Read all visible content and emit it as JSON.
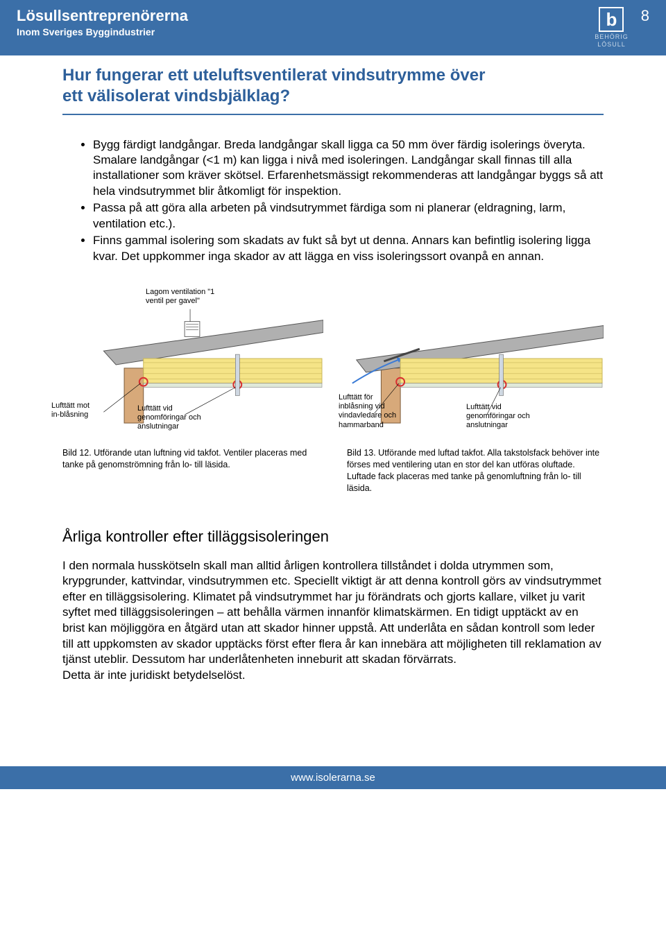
{
  "header": {
    "title": "Lösullsentreprenörerna",
    "subtitle": "Inom Sveriges Byggindustrier",
    "logo_line1": "BEHÖRIG",
    "logo_line2": "LÖSULL",
    "logo_glyph": "b",
    "page_number": "8"
  },
  "section_title_line1": "Hur fungerar ett uteluftsventilerat vindsutrymme över",
  "section_title_line2": "ett välisolerat vindsbjälklag?",
  "bullets": [
    "Bygg färdigt landgångar. Breda landgångar skall ligga ca 50 mm över färdig isolerings överyta. Smalare landgångar (<1 m) kan ligga i nivå med isoleringen. Landgångar skall finnas till alla installationer som kräver skötsel. Erfarenhetsmässigt rekommenderas att landgångar byggs så att hela vindsutrymmet blir åtkomligt för inspektion.",
    "Passa på att göra alla arbeten på vindsutrymmet färdiga som ni planerar (eldragning, larm, ventilation etc.).",
    "Finns gammal isolering som skadats av fukt så byt ut denna. Annars kan befintlig isolering ligga kvar. Det uppkommer inga skador av att lägga en viss isoleringssort ovanpå en annan."
  ],
  "fig_left": {
    "annot_top": "Lagom ventilation \"1 ventil per gavel\"",
    "annot_bl": "Lufttätt mot in-blåsning",
    "annot_br": "Lufttätt vid genomföringar och anslutningar",
    "colors": {
      "roof": "#b0b0b0",
      "insulation": "#f5e487",
      "wall": "#d7a97a",
      "seal": "#d93030"
    }
  },
  "fig_right": {
    "annot_bl": "Lufttätt för inblåsning vid vindavledare och hammarband",
    "annot_br": "Lufttätt vid genomföringar och anslutningar",
    "colors": {
      "roof": "#b0b0b0",
      "insulation": "#f5e487",
      "wall": "#d7a97a",
      "seal": "#d93030"
    }
  },
  "caption_left": "Bild 12. Utförande utan luftning vid takfot. Ventiler placeras med tanke på genomströmning från lo- till läsida.",
  "caption_right": "Bild 13. Utförande med luftad takfot. Alla takstolsfack behöver inte förses med ventilering utan en stor del kan utföras oluftade. Luftade fack placeras med tanke på genomluftning från lo- till läsida.",
  "h2": "Årliga kontroller efter tilläggsisoleringen",
  "body": "I den normala husskötseln skall man alltid årligen kontrollera tillståndet i dolda utrymmen som, krypgrunder, kattvindar, vindsutrymmen etc. Speciellt viktigt är att denna kontroll görs av vindsutrymmet efter en tilläggsisolering. Klimatet på vindsutrymmet har ju förändrats och gjorts kallare, vilket ju varit syftet med tilläggsisoleringen – att behålla värmen innanför klimatskärmen. En tidigt upptäckt av en brist kan möjliggöra en åtgärd utan att skador hinner uppstå. Att underlåta en sådan kontroll som leder till att uppkomsten av skador upptäcks först efter flera år kan innebära att möjligheten till reklamation av tjänst uteblir. Dessutom har underlåtenheten inneburit att skadan förvärrats.\nDetta är inte juridiskt betydelselöst.",
  "footer": "www.isolerarna.se"
}
